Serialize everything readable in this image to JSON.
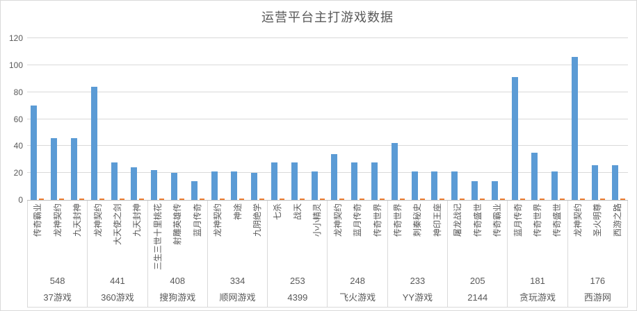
{
  "chart_data": {
    "type": "bar",
    "title": "运营平台主打游戏数据",
    "xlabel": "",
    "ylabel": "",
    "ylim": [
      0,
      120
    ],
    "yticks": [
      0,
      20,
      40,
      60,
      80,
      100,
      120
    ],
    "grid": true,
    "legend_position": "none",
    "series_colors": {
      "primary": "#5b9bd5",
      "secondary": "#ed7d31"
    },
    "groups": [
      {
        "platform": "37游戏",
        "platform_total": "548",
        "games": [
          "传奇霸业",
          "龙神契约",
          "九天封神"
        ],
        "primary_values": [
          70,
          46,
          46
        ],
        "secondary_values": [
          1,
          1,
          1
        ]
      },
      {
        "platform": "360游戏",
        "platform_total": "441",
        "games": [
          "龙神契约",
          "大天使之剑",
          "九天封神"
        ],
        "primary_values": [
          84,
          28,
          24
        ],
        "secondary_values": [
          1,
          1,
          1
        ]
      },
      {
        "platform": "搜狗游戏",
        "platform_total": "408",
        "games": [
          "三生三世十里桃花",
          "射雕英雄传",
          "蓝月传奇"
        ],
        "primary_values": [
          22,
          20,
          14
        ],
        "secondary_values": [
          1,
          1,
          1
        ]
      },
      {
        "platform": "顺网游戏",
        "platform_total": "334",
        "games": [
          "龙神契约",
          "神途",
          "九阴绝学"
        ],
        "primary_values": [
          21,
          21,
          20
        ],
        "secondary_values": [
          1,
          1,
          1
        ]
      },
      {
        "platform": "4399",
        "platform_total": "253",
        "games": [
          "七杀",
          "战天",
          "小小精灵"
        ],
        "primary_values": [
          28,
          28,
          21
        ],
        "secondary_values": [
          1,
          1,
          1
        ]
      },
      {
        "platform": "飞火游戏",
        "platform_total": "248",
        "games": [
          "龙神契约",
          "蓝月传奇",
          "传奇世界"
        ],
        "primary_values": [
          34,
          28,
          28
        ],
        "secondary_values": [
          1,
          1,
          1
        ]
      },
      {
        "platform": "YY游戏",
        "platform_total": "233",
        "games": [
          "传奇世界",
          "刺秦秘史",
          "神印王座"
        ],
        "primary_values": [
          42,
          21,
          21
        ],
        "secondary_values": [
          1,
          1,
          1
        ]
      },
      {
        "platform": "2144",
        "platform_total": "205",
        "games": [
          "屠龙战记",
          "传奇盛世",
          "传奇霸业"
        ],
        "primary_values": [
          21,
          14,
          14
        ],
        "secondary_values": [
          1,
          1,
          1
        ]
      },
      {
        "platform": "贪玩游戏",
        "platform_total": "181",
        "games": [
          "蓝月传奇",
          "传奇世界",
          "传奇盛世"
        ],
        "primary_values": [
          91,
          35,
          21
        ],
        "secondary_values": [
          1,
          1,
          1
        ]
      },
      {
        "platform": "西游网",
        "platform_total": "176",
        "games": [
          "龙神契约",
          "圣火明尊",
          "西游之路"
        ],
        "primary_values": [
          106,
          26,
          26
        ],
        "secondary_values": [
          1,
          1,
          1
        ]
      }
    ],
    "colors": {
      "title_text": "#595959",
      "axis_text": "#595959",
      "gridline": "#d9d9d9",
      "axis_line": "#bfbfbf",
      "frame_border": "#d9d9d9"
    }
  }
}
